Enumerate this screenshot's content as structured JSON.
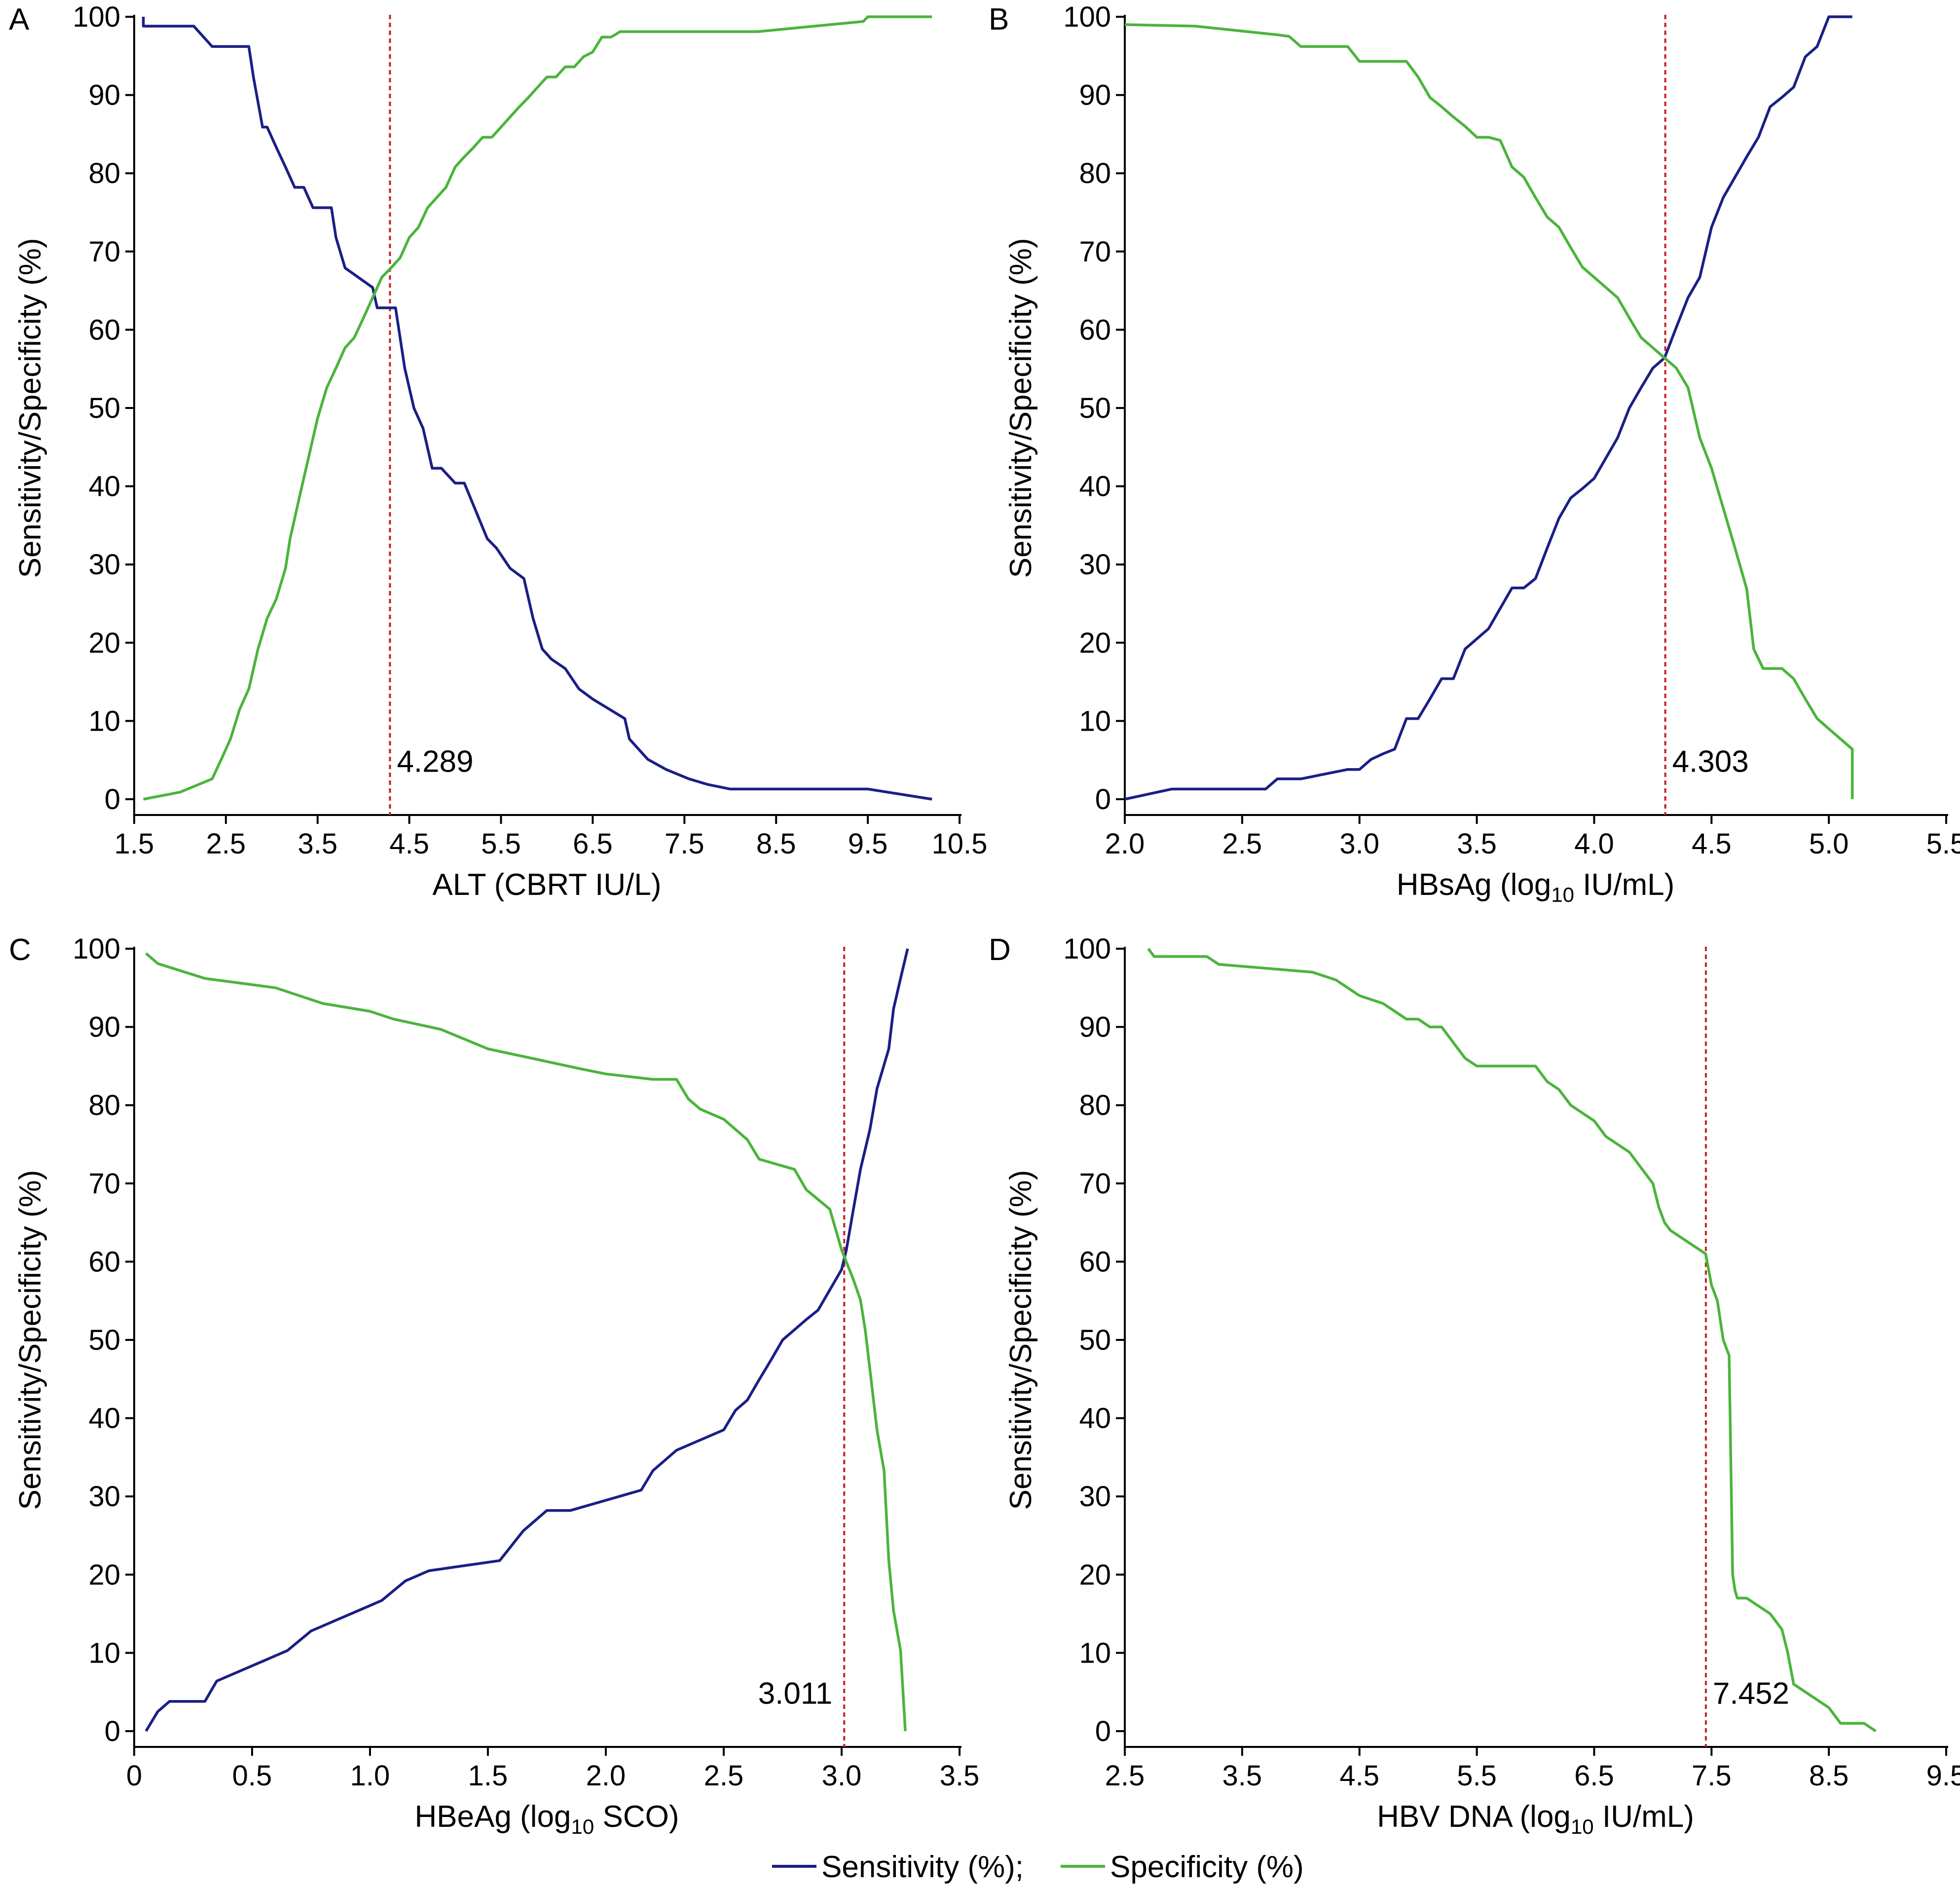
{
  "colors": {
    "sensitivity": "#1a1f85",
    "specificity": "#4bb43c",
    "cutoff": "#cc1f1f"
  },
  "legend": {
    "sensitivity_label": "Sensitivity (%);",
    "specificity_label": "Specificity (%)"
  },
  "chart_data": [
    {
      "panel": "A",
      "type": "line",
      "xlabel": "ALT (CBRT IU/L)",
      "ylabel": "Sensitivity/Specificity (%)",
      "xlim": [
        1.5,
        10.5
      ],
      "ylim": [
        0,
        100
      ],
      "xticks": [
        1.5,
        2.5,
        3.5,
        4.5,
        5.5,
        6.5,
        7.5,
        8.5,
        9.5,
        10.5
      ],
      "xtick_labels": [
        "1.5",
        "2.5",
        "3.5",
        "4.5",
        "5.5",
        "6.5",
        "7.5",
        "8.5",
        "9.5",
        "10.5"
      ],
      "yticks": [
        0,
        10,
        20,
        30,
        40,
        50,
        60,
        70,
        80,
        90,
        100
      ],
      "cutoff": 4.289,
      "cutoff_label": "4.289",
      "cutoff_label_side": "right",
      "series": [
        {
          "name": "Sensitivity (%)",
          "color": "#1a1f85",
          "x": [
            1.6,
            1.6,
            2.15,
            2.35,
            2.75,
            2.8,
            2.9,
            2.95,
            3.05,
            3.15,
            3.25,
            3.35,
            3.45,
            3.5,
            3.65,
            3.7,
            3.8,
            4.1,
            4.15,
            4.2,
            4.27,
            4.35,
            4.45,
            4.55,
            4.65,
            4.75,
            4.85,
            5.0,
            5.1,
            5.35,
            5.45,
            5.6,
            5.75,
            5.85,
            5.95,
            6.05,
            6.2,
            6.35,
            6.5,
            6.85,
            6.9,
            7.1,
            7.3,
            7.55,
            7.75,
            8.0,
            8.3,
            9.5,
            10.2
          ],
          "y": [
            100,
            98.8,
            98.8,
            96.2,
            96.2,
            92.3,
            85.9,
            85.9,
            83.3,
            80.8,
            78.2,
            78.2,
            75.6,
            75.6,
            75.6,
            71.8,
            67.9,
            65.4,
            62.8,
            62.8,
            62.8,
            62.8,
            55.1,
            50.0,
            47.4,
            42.3,
            42.3,
            40.4,
            40.4,
            33.3,
            32.1,
            29.5,
            28.2,
            23.1,
            19.2,
            17.9,
            16.7,
            14.1,
            12.8,
            10.3,
            7.7,
            5.1,
            3.8,
            2.6,
            1.9,
            1.3,
            1.3,
            1.3,
            0
          ]
        },
        {
          "name": "Specificity (%)",
          "color": "#4bb43c",
          "x": [
            1.6,
            2.0,
            2.35,
            2.45,
            2.55,
            2.65,
            2.75,
            2.85,
            2.95,
            3.05,
            3.15,
            3.2,
            3.3,
            3.4,
            3.5,
            3.6,
            3.7,
            3.8,
            3.9,
            4.0,
            4.1,
            4.2,
            4.3,
            4.4,
            4.5,
            4.6,
            4.7,
            4.8,
            4.9,
            5.0,
            5.1,
            5.2,
            5.3,
            5.4,
            5.5,
            5.6,
            5.7,
            5.8,
            5.9,
            6.0,
            6.1,
            6.2,
            6.3,
            6.4,
            6.5,
            6.6,
            6.7,
            6.8,
            6.9,
            7.0,
            7.2,
            7.5,
            8.3,
            9.45,
            9.5,
            10.2
          ],
          "y": [
            0,
            0.9,
            2.6,
            5.1,
            7.7,
            11.5,
            14.1,
            19.2,
            23.1,
            25.6,
            29.5,
            33.3,
            38.5,
            43.6,
            48.7,
            52.6,
            55.1,
            57.7,
            59.0,
            61.5,
            64.1,
            66.7,
            67.9,
            69.2,
            71.8,
            73.1,
            75.6,
            76.9,
            78.2,
            80.8,
            82.1,
            83.3,
            84.6,
            84.6,
            85.9,
            87.2,
            88.5,
            89.7,
            91.0,
            92.3,
            92.3,
            93.6,
            93.6,
            94.9,
            95.5,
            97.4,
            97.4,
            98.1,
            98.1,
            98.1,
            98.1,
            98.1,
            98.1,
            99.4,
            100,
            100
          ]
        }
      ]
    },
    {
      "panel": "B",
      "type": "line",
      "xlabel": "HBsAg (log10 IU/mL)",
      "ylabel": "Sensitivity/Specificity (%)",
      "xlim": [
        2.0,
        5.5
      ],
      "ylim": [
        0,
        100
      ],
      "xticks": [
        2.0,
        2.5,
        3.0,
        3.5,
        4.0,
        4.5,
        5.0,
        5.5
      ],
      "xtick_labels": [
        "2.0",
        "2.5",
        "3.0",
        "3.5",
        "4.0",
        "4.5",
        "5.0",
        "5.5"
      ],
      "yticks": [
        0,
        10,
        20,
        30,
        40,
        50,
        60,
        70,
        80,
        90,
        100
      ],
      "cutoff": 4.303,
      "cutoff_label": "4.303",
      "cutoff_label_side": "right",
      "series": [
        {
          "name": "Sensitivity (%)",
          "color": "#1a1f85",
          "x": [
            2.0,
            2.2,
            2.6,
            2.65,
            2.75,
            2.95,
            3.0,
            3.05,
            3.1,
            3.15,
            3.2,
            3.25,
            3.3,
            3.35,
            3.4,
            3.45,
            3.5,
            3.55,
            3.6,
            3.65,
            3.7,
            3.75,
            3.8,
            3.85,
            3.9,
            3.95,
            4.0,
            4.05,
            4.1,
            4.15,
            4.2,
            4.25,
            4.3,
            4.35,
            4.4,
            4.45,
            4.5,
            4.55,
            4.6,
            4.65,
            4.7,
            4.75,
            4.8,
            4.85,
            4.9,
            4.95,
            5.0,
            5.1
          ],
          "y": [
            0,
            1.3,
            1.3,
            2.6,
            2.6,
            3.8,
            3.8,
            5.1,
            5.8,
            6.4,
            10.3,
            10.3,
            12.8,
            15.4,
            15.4,
            19.2,
            20.5,
            21.8,
            24.4,
            27.0,
            27.0,
            28.2,
            32.1,
            35.9,
            38.5,
            39.7,
            41.0,
            43.6,
            46.2,
            50.0,
            52.6,
            55.1,
            56.4,
            60.3,
            64.1,
            66.7,
            73.1,
            76.9,
            79.5,
            82.1,
            84.6,
            88.5,
            89.7,
            91.0,
            94.9,
            96.2,
            100,
            100
          ]
        },
        {
          "name": "Specificity (%)",
          "color": "#4bb43c",
          "x": [
            2.0,
            2.3,
            2.65,
            2.7,
            2.75,
            2.95,
            3.0,
            3.2,
            3.25,
            3.3,
            3.35,
            3.4,
            3.45,
            3.5,
            3.55,
            3.6,
            3.65,
            3.7,
            3.75,
            3.8,
            3.85,
            3.9,
            3.95,
            4.0,
            4.05,
            4.1,
            4.15,
            4.2,
            4.25,
            4.3,
            4.35,
            4.4,
            4.45,
            4.5,
            4.55,
            4.6,
            4.65,
            4.68,
            4.72,
            4.75,
            4.8,
            4.85,
            4.9,
            4.95,
            5.0,
            5.05,
            5.1,
            5.1
          ],
          "y": [
            99,
            98.8,
            97.7,
            97.5,
            96.2,
            96.2,
            94.3,
            94.3,
            92.3,
            89.7,
            88.5,
            87.2,
            86.0,
            84.6,
            84.6,
            84.2,
            80.8,
            79.5,
            76.9,
            74.4,
            73.1,
            70.5,
            68.0,
            66.7,
            65.4,
            64.1,
            61.5,
            59.0,
            57.7,
            56.4,
            55.1,
            52.6,
            46.2,
            42.3,
            37.2,
            32.1,
            26.9,
            19.2,
            16.7,
            16.7,
            16.7,
            15.4,
            12.8,
            10.3,
            9.0,
            7.7,
            6.4,
            0
          ]
        }
      ]
    },
    {
      "panel": "C",
      "type": "line",
      "xlabel": "HBeAg (log10 SCO)",
      "ylabel": "Sensitivity/Specificity (%)",
      "xlim": [
        0,
        3.5
      ],
      "ylim": [
        0,
        100
      ],
      "xticks": [
        0,
        0.5,
        1.0,
        1.5,
        2.0,
        2.5,
        3.0,
        3.5
      ],
      "xtick_labels": [
        "0",
        "0.5",
        "1.0",
        "1.5",
        "2.0",
        "2.5",
        "3.0",
        "3.5"
      ],
      "yticks": [
        0,
        10,
        20,
        30,
        40,
        50,
        60,
        70,
        80,
        90,
        100
      ],
      "cutoff": 3.011,
      "cutoff_label": "3.011",
      "cutoff_label_side": "left",
      "series": [
        {
          "name": "Sensitivity (%)",
          "color": "#1a1f85",
          "x": [
            0.05,
            0.1,
            0.15,
            0.3,
            0.35,
            0.45,
            0.55,
            0.65,
            0.75,
            0.85,
            0.95,
            1.05,
            1.15,
            1.25,
            1.55,
            1.65,
            1.75,
            1.85,
            2.0,
            2.15,
            2.2,
            2.3,
            2.4,
            2.5,
            2.55,
            2.6,
            2.65,
            2.7,
            2.75,
            2.8,
            2.85,
            2.9,
            2.95,
            3.0,
            3.02,
            3.05,
            3.08,
            3.12,
            3.15,
            3.2,
            3.22,
            3.25,
            3.28
          ],
          "y": [
            0,
            2.5,
            3.8,
            3.8,
            6.4,
            7.7,
            9.0,
            10.3,
            12.8,
            14.1,
            15.4,
            16.7,
            19.2,
            20.5,
            21.8,
            25.6,
            28.2,
            28.2,
            29.5,
            30.8,
            33.3,
            35.9,
            37.2,
            38.5,
            41.0,
            42.3,
            44.9,
            47.4,
            50.0,
            51.3,
            52.6,
            53.8,
            56.4,
            59.0,
            61.5,
            66.7,
            71.8,
            76.9,
            82.1,
            87.2,
            92.3,
            96.2,
            100
          ]
        },
        {
          "name": "Specificity (%)",
          "color": "#4bb43c",
          "x": [
            0.05,
            0.1,
            0.3,
            0.6,
            0.7,
            0.8,
            1.0,
            1.1,
            1.3,
            1.5,
            1.7,
            1.9,
            2.0,
            2.2,
            2.3,
            2.35,
            2.4,
            2.5,
            2.6,
            2.65,
            2.8,
            2.85,
            2.95,
            3.0,
            3.05,
            3.08,
            3.1,
            3.12,
            3.15,
            3.18,
            3.2,
            3.22,
            3.25,
            3.27
          ],
          "y": [
            99.4,
            98.1,
            96.2,
            95.0,
            94.0,
            93.0,
            92.0,
            91.0,
            89.7,
            87.2,
            85.9,
            84.6,
            84.0,
            83.3,
            83.3,
            80.8,
            79.5,
            78.2,
            75.6,
            73.1,
            71.8,
            69.2,
            66.7,
            61.5,
            57.7,
            55.1,
            51.3,
            46.2,
            38.5,
            33.3,
            21.8,
            15.4,
            10.3,
            0
          ]
        }
      ]
    },
    {
      "panel": "D",
      "type": "line",
      "xlabel": "HBV DNA (log10 IU/mL)",
      "ylabel": "Sensitivity/Specificity (%)",
      "xlim": [
        2.5,
        9.5
      ],
      "ylim": [
        0,
        100
      ],
      "xticks": [
        2.5,
        3.5,
        4.5,
        5.5,
        6.5,
        7.5,
        8.5,
        9.5
      ],
      "xtick_labels": [
        "2.5",
        "3.5",
        "4.5",
        "5.5",
        "6.5",
        "7.5",
        "8.5",
        "9.5"
      ],
      "yticks": [
        0,
        10,
        20,
        30,
        40,
        50,
        60,
        70,
        80,
        90,
        100
      ],
      "cutoff": 7.452,
      "cutoff_label": "7.452",
      "cutoff_label_side": "right",
      "series": [
        {
          "name": "Specificity (%)",
          "color": "#4bb43c",
          "x": [
            2.7,
            2.75,
            3.2,
            3.3,
            4.1,
            4.3,
            4.4,
            4.5,
            4.7,
            4.9,
            5.0,
            5.1,
            5.2,
            5.3,
            5.4,
            5.5,
            6.0,
            6.1,
            6.2,
            6.3,
            6.4,
            6.5,
            6.6,
            6.7,
            6.8,
            6.9,
            7.0,
            7.05,
            7.1,
            7.15,
            7.25,
            7.35,
            7.45,
            7.5,
            7.55,
            7.6,
            7.65,
            7.68,
            7.7,
            7.72,
            7.8,
            8.0,
            8.1,
            8.15,
            8.2,
            8.3,
            8.5,
            8.6,
            8.8,
            8.9
          ],
          "y": [
            100,
            99,
            99,
            98,
            97,
            96,
            95,
            94,
            93,
            91,
            91,
            90,
            90,
            88,
            86,
            85,
            85,
            83,
            82,
            80,
            79,
            78,
            76,
            75,
            74,
            72,
            70,
            67,
            65,
            64,
            63,
            62,
            61,
            57,
            55,
            50,
            48,
            20,
            18,
            17,
            17,
            15,
            13,
            10,
            6,
            5,
            3,
            1,
            1,
            0
          ]
        }
      ]
    }
  ]
}
